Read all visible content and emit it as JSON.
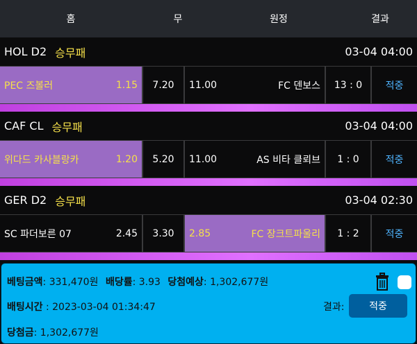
{
  "header": {
    "home": "홈",
    "draw": "무",
    "away": "원정",
    "result": "결과"
  },
  "matches": [
    {
      "league": "HOL D2",
      "type": "승무패",
      "time": "03-04 04:00",
      "home": "PEC 즈볼러",
      "home_odds": "1.15",
      "draw_odds": "7.20",
      "away_odds": "11.00",
      "away": "FC 덴보스",
      "score": "13 : 0",
      "result": "적중",
      "selected": "home"
    },
    {
      "league": "CAF CL",
      "type": "승무패",
      "time": "03-04 04:00",
      "home": "위다드 카사블랑카",
      "home_odds": "1.20",
      "draw_odds": "5.20",
      "away_odds": "11.00",
      "away": "AS 비타 클뢰브",
      "score": "1 : 0",
      "result": "적중",
      "selected": "home"
    },
    {
      "league": "GER D2",
      "type": "승무패",
      "time": "03-04 02:30",
      "home": "SC 파더보른 07",
      "home_odds": "2.45",
      "draw_odds": "3.30",
      "away_odds": "2.85",
      "away": "FC 장크트파울리",
      "score": "1 : 2",
      "result": "적중",
      "selected": "away"
    }
  ],
  "summary": {
    "bet_label": "베팅금액",
    "bet_value": ": 331,470원",
    "rate_label": "배당률",
    "rate_value": ": 3.93",
    "expected_label": "당첨예상",
    "expected_value": ": 1,302,677원",
    "time_label": "배팅시간",
    "time_value": " : 2023-03-04 01:34:47",
    "result_label": "결과:",
    "result_button": "적중",
    "win_label": "당첨금",
    "win_value": ": 1,302,677원"
  }
}
